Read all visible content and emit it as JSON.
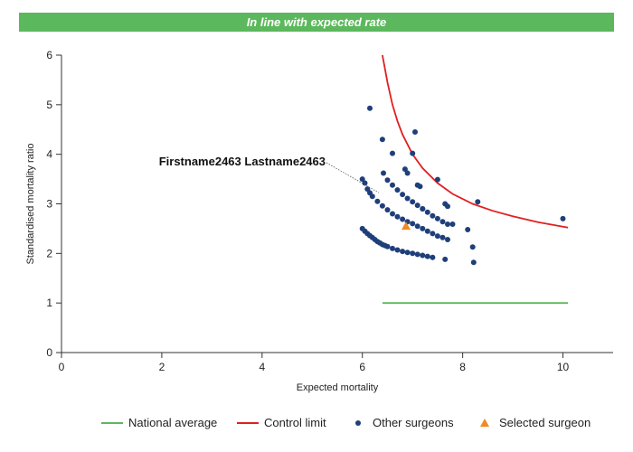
{
  "header": {
    "title": "In line with expected rate"
  },
  "colors": {
    "banner": "#5cb85c",
    "national_average": "#5cb85c",
    "control_limit": "#e02020",
    "other_surgeons": "#1f3f7a",
    "selected_surgeon": "#f08a24"
  },
  "chart_data": {
    "type": "scatter",
    "xlabel": "Expected mortality",
    "ylabel": "Standardised mortality ratio",
    "xlim": [
      0,
      11
    ],
    "ylim": [
      0,
      6
    ],
    "xticks": [
      0,
      2,
      4,
      6,
      8,
      10
    ],
    "yticks": [
      0,
      1,
      2,
      3,
      4,
      5,
      6
    ],
    "grid": false,
    "legend_placement": "bottom",
    "annotation": {
      "text": "Firstname2463 Lastname2463",
      "x": 6.87,
      "y": 2.55
    },
    "series": [
      {
        "name": "National average",
        "kind": "line",
        "x": [
          6.4,
          10.1
        ],
        "y": [
          1.0,
          1.0
        ]
      },
      {
        "name": "Control limit",
        "kind": "line",
        "x": [
          6.4,
          6.5,
          6.6,
          6.7,
          6.8,
          7.0,
          7.2,
          7.5,
          7.8,
          8.2,
          8.6,
          9.0,
          9.5,
          10.1
        ],
        "y": [
          6.0,
          5.45,
          5.0,
          4.67,
          4.4,
          4.0,
          3.72,
          3.42,
          3.2,
          3.0,
          2.86,
          2.75,
          2.63,
          2.52
        ]
      },
      {
        "name": "Other surgeons",
        "kind": "scatter",
        "x": [
          6.0,
          6.05,
          6.1,
          6.15,
          6.2,
          6.25,
          6.3,
          6.35,
          6.4,
          6.45,
          6.5,
          6.6,
          6.7,
          6.8,
          6.9,
          7.0,
          7.1,
          7.2,
          7.3,
          7.4,
          6.0,
          6.05,
          6.1,
          6.15,
          6.2,
          6.3,
          6.4,
          6.5,
          6.6,
          6.7,
          6.8,
          6.9,
          7.0,
          7.1,
          7.2,
          7.3,
          7.4,
          7.5,
          7.6,
          7.7,
          6.5,
          6.6,
          6.7,
          6.8,
          6.9,
          7.0,
          7.1,
          7.2,
          7.3,
          7.4,
          7.5,
          7.6,
          7.7,
          6.15,
          6.4,
          6.6,
          6.85,
          6.9,
          7.0,
          7.05,
          7.1,
          7.15,
          7.2,
          7.5,
          7.65,
          7.7,
          6.42,
          7.8,
          8.1,
          8.2,
          8.22,
          8.3,
          7.65,
          10.0
        ],
        "y": [
          2.5,
          2.45,
          2.4,
          2.36,
          2.32,
          2.28,
          2.24,
          2.21,
          2.18,
          2.16,
          2.14,
          2.1,
          2.07,
          2.04,
          2.02,
          2.0,
          1.98,
          1.96,
          1.94,
          1.92,
          3.5,
          3.42,
          3.3,
          3.22,
          3.15,
          3.05,
          2.96,
          2.88,
          2.8,
          2.74,
          2.69,
          2.64,
          2.6,
          2.55,
          2.5,
          2.45,
          2.4,
          2.35,
          2.32,
          2.28,
          3.48,
          3.38,
          3.28,
          3.19,
          3.11,
          3.04,
          2.97,
          2.9,
          2.83,
          2.76,
          2.7,
          2.64,
          2.59,
          4.93,
          4.3,
          4.02,
          3.7,
          3.62,
          4.02,
          4.45,
          3.38,
          3.35,
          2.9,
          3.49,
          3.0,
          2.95,
          3.62,
          2.59,
          2.48,
          2.13,
          1.82,
          3.04,
          1.88,
          2.7
        ]
      },
      {
        "name": "Selected surgeon",
        "kind": "scatter",
        "x": [
          6.87
        ],
        "y": [
          2.55
        ]
      }
    ]
  }
}
